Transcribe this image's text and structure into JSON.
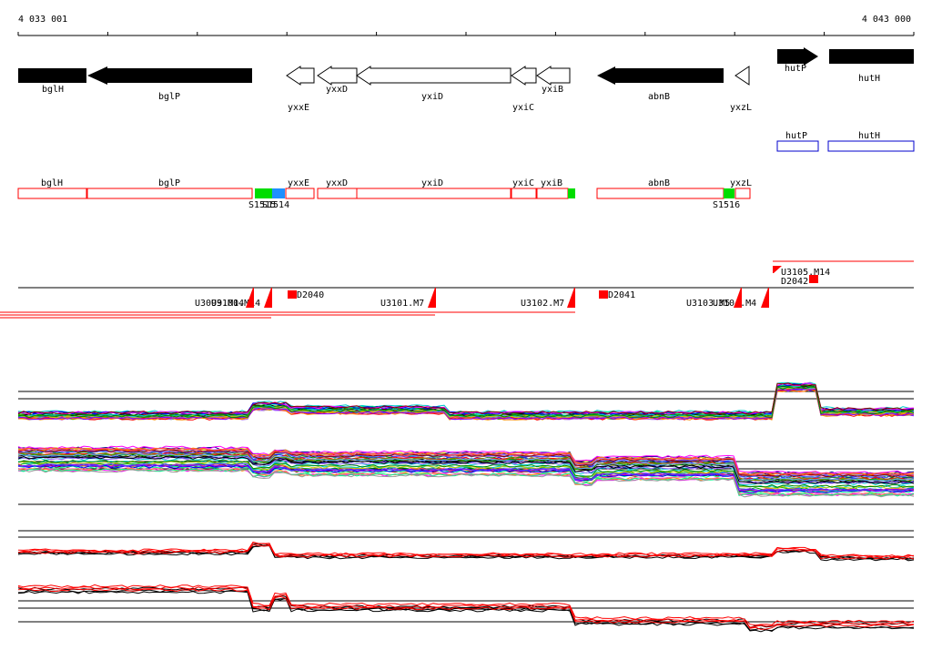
{
  "coords": {
    "start": "4 033 001",
    "end": "4 043 000"
  },
  "colors": {
    "gene_filled": "#000000",
    "gene_outline": "#000000",
    "annot_box": "#ff0000",
    "annot_box_blue": "#0000cc",
    "marker_green": "#00dd00",
    "marker_blue": "#1e90ff",
    "feature_red": "#ff0000",
    "line_black": "#000000",
    "line_red": "#ff0000"
  },
  "genes_top": [
    {
      "id": "bglH",
      "label": "bglH",
      "style": "filled"
    },
    {
      "id": "bglP",
      "label": "bglP",
      "style": "filled"
    },
    {
      "id": "yxxE",
      "label": "yxxE",
      "style": "outline"
    },
    {
      "id": "yxxD",
      "label": "yxxD",
      "style": "outline"
    },
    {
      "id": "yxiD",
      "label": "yxiD",
      "style": "outline"
    },
    {
      "id": "yxiC",
      "label": "yxiC",
      "style": "outline"
    },
    {
      "id": "yxiB",
      "label": "yxiB",
      "style": "outline"
    },
    {
      "id": "abnB",
      "label": "abnB",
      "style": "filled"
    },
    {
      "id": "yxzL",
      "label": "yxzL",
      "style": "outline"
    },
    {
      "id": "hutP",
      "label": "hutP",
      "style": "filled"
    },
    {
      "id": "hutH",
      "label": "hutH",
      "style": "filled"
    }
  ],
  "annot_blue": [
    {
      "id": "hutP",
      "label": "hutP"
    },
    {
      "id": "hutH",
      "label": "hutH"
    }
  ],
  "annot_red": [
    {
      "id": "bglH",
      "label": "bglH"
    },
    {
      "id": "bglP",
      "label": "bglP"
    },
    {
      "id": "yxxE",
      "label": "yxxE"
    },
    {
      "id": "yxxD",
      "label": "yxxD"
    },
    {
      "id": "yxiD",
      "label": "yxiD"
    },
    {
      "id": "yxiC",
      "label": "yxiC"
    },
    {
      "id": "yxiB",
      "label": "yxiB"
    },
    {
      "id": "abnB",
      "label": "abnB"
    },
    {
      "id": "yxzL",
      "label": "yxzL"
    }
  ],
  "markers": [
    {
      "id": "S1515",
      "label": "S1515"
    },
    {
      "id": "S1514",
      "label": "S1514"
    },
    {
      "id": "S1516",
      "label": "S1516"
    }
  ],
  "features": [
    {
      "id": "U3099",
      "label": "U3099.M14"
    },
    {
      "id": "U3100",
      "label": "U3100.M14"
    },
    {
      "id": "U3101",
      "label": "U3101.M7"
    },
    {
      "id": "U3102",
      "label": "U3102.M7"
    },
    {
      "id": "U3103",
      "label": "U3103.M5"
    },
    {
      "id": "U3104",
      "label": "U3104.M4"
    },
    {
      "id": "U3105",
      "label": "U3105.M14"
    },
    {
      "id": "D2040",
      "label": "D2040"
    },
    {
      "id": "D2041",
      "label": "D2041"
    },
    {
      "id": "D2042",
      "label": "D2042"
    }
  ]
}
